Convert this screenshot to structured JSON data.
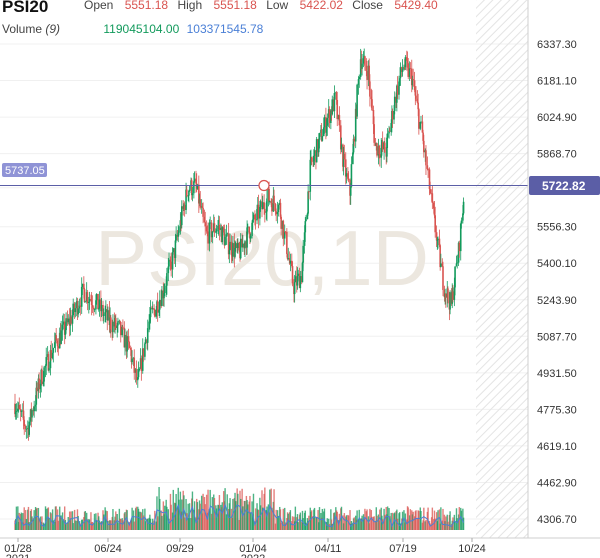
{
  "header": {
    "symbol": "PSI20",
    "open_label": "Open",
    "open_value": "5551.18",
    "high_label": "High",
    "high_value": "5551.18",
    "low_label": "Low",
    "low_value": "5422.02",
    "close_label": "Close",
    "close_value": "5429.40",
    "volume_label": "Volume",
    "volume_period": "(9)",
    "volume_value_1": "119045104.00",
    "volume_value_2": "103371545.78"
  },
  "colors": {
    "up": "#129a5c",
    "down": "#d9534f",
    "price_line": "#5b5ea6",
    "price_tag_bg": "#5b5ea6",
    "crosshair_tag_bg": "#8f93d6",
    "volume_ma": "#4a7fd6",
    "watermark": "#ece7df"
  },
  "chart_data": {
    "type": "candlestick",
    "title": "PSI20",
    "watermark": "PSI20,1D",
    "y_axis": {
      "ticks": [
        4306.7,
        4462.9,
        4619.1,
        4775.3,
        4931.5,
        5087.7,
        5243.9,
        5400.1,
        5556.3,
        5722.82,
        5868.7,
        6024.9,
        6181.1,
        6337.3
      ],
      "range": [
        4250,
        6400
      ]
    },
    "x_axis": {
      "ticks": [
        "01/28\n2021",
        "06/24",
        "09/29",
        "01/04\n2022",
        "04/11",
        "07/19",
        "10/24"
      ]
    },
    "last_price": "5722.82",
    "crosshair_price": "5737.05",
    "series_close_points": [
      [
        "2021-01-28",
        4800
      ],
      [
        "2021-02-15",
        4690
      ],
      [
        "2021-03-05",
        4900
      ],
      [
        "2021-03-25",
        5050
      ],
      [
        "2021-04-15",
        5150
      ],
      [
        "2021-05-05",
        5280
      ],
      [
        "2021-05-25",
        5220
      ],
      [
        "2021-06-10",
        5150
      ],
      [
        "2021-06-24",
        5120
      ],
      [
        "2021-07-10",
        5020
      ],
      [
        "2021-07-20",
        4880
      ],
      [
        "2021-08-05",
        5150
      ],
      [
        "2021-08-25",
        5280
      ],
      [
        "2021-09-10",
        5450
      ],
      [
        "2021-09-29",
        5720
      ],
      [
        "2021-10-10",
        5730
      ],
      [
        "2021-10-25",
        5520
      ],
      [
        "2021-11-10",
        5560
      ],
      [
        "2021-11-25",
        5480
      ],
      [
        "2021-12-10",
        5440
      ],
      [
        "2021-12-20",
        5510
      ],
      [
        "2022-01-04",
        5600
      ],
      [
        "2022-01-20",
        5680
      ],
      [
        "2022-02-05",
        5640
      ],
      [
        "2022-02-25",
        5300
      ],
      [
        "2022-03-08",
        5350
      ],
      [
        "2022-03-20",
        5800
      ],
      [
        "2022-04-11",
        6000
      ],
      [
        "2022-04-25",
        6100
      ],
      [
        "2022-05-05",
        5850
      ],
      [
        "2022-05-15",
        5700
      ],
      [
        "2022-05-30",
        6280
      ],
      [
        "2022-06-10",
        6220
      ],
      [
        "2022-06-20",
        5900
      ],
      [
        "2022-07-05",
        5880
      ],
      [
        "2022-07-19",
        6120
      ],
      [
        "2022-07-30",
        6250
      ],
      [
        "2022-08-10",
        6200
      ],
      [
        "2022-08-25",
        5950
      ],
      [
        "2022-09-10",
        5600
      ],
      [
        "2022-09-25",
        5300
      ],
      [
        "2022-10-05",
        5220
      ],
      [
        "2022-10-15",
        5450
      ],
      [
        "2022-10-24",
        5722
      ]
    ]
  }
}
